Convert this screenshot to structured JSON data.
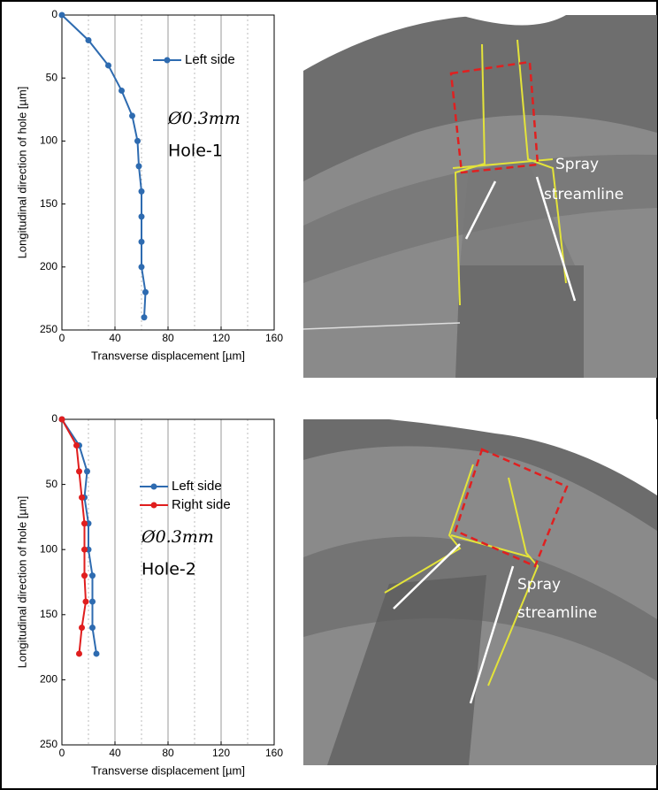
{
  "chart_data": [
    {
      "type": "line",
      "xlabel": "Transverse displacement [µm]",
      "ylabel": "Longitudinal direction of hole [µm]",
      "xlim": [
        0,
        160
      ],
      "xticks": [
        0,
        40,
        80,
        120,
        160
      ],
      "x_minor_grid": [
        20,
        60,
        100,
        140
      ],
      "ylim": [
        0,
        250
      ],
      "yticks": [
        0,
        50,
        100,
        150,
        200,
        250
      ],
      "y_inverted": true,
      "grid": true,
      "annotations": [
        "Ø0.3mm",
        "Hole-1"
      ],
      "series": [
        {
          "name": "Left side",
          "color": "#2e6bb0",
          "x": [
            0,
            20,
            35,
            45,
            53,
            57,
            58,
            60,
            60,
            60,
            60,
            63,
            62
          ],
          "y": [
            0,
            20,
            40,
            60,
            80,
            100,
            120,
            140,
            160,
            180,
            200,
            220,
            240
          ]
        }
      ]
    },
    {
      "type": "line",
      "xlabel": "Transverse displacement [µm]",
      "ylabel": "Longitudinal direction of hole [µm]",
      "xlim": [
        0,
        160
      ],
      "xticks": [
        0,
        40,
        80,
        120,
        160
      ],
      "x_minor_grid": [
        20,
        60,
        100,
        140
      ],
      "ylim": [
        0,
        250
      ],
      "yticks": [
        0,
        50,
        100,
        150,
        200,
        250
      ],
      "y_inverted": true,
      "grid": true,
      "annotations": [
        "Ø0.3mm",
        "Hole-2"
      ],
      "series": [
        {
          "name": "Left side",
          "color": "#2e6bb0",
          "x": [
            0,
            13,
            19,
            17,
            20,
            20,
            23,
            23,
            23,
            26
          ],
          "y": [
            0,
            20,
            40,
            60,
            80,
            100,
            120,
            140,
            160,
            180
          ]
        },
        {
          "name": "Right side",
          "color": "#e01e1e",
          "x": [
            0,
            11,
            13,
            15,
            17,
            17,
            17,
            18,
            15,
            13
          ],
          "y": [
            0,
            20,
            40,
            60,
            80,
            100,
            120,
            140,
            160,
            180
          ]
        }
      ]
    }
  ],
  "images": [
    {
      "labels": [
        "Spray",
        "streamline"
      ]
    },
    {
      "labels": [
        "Spray",
        "streamline"
      ]
    }
  ]
}
